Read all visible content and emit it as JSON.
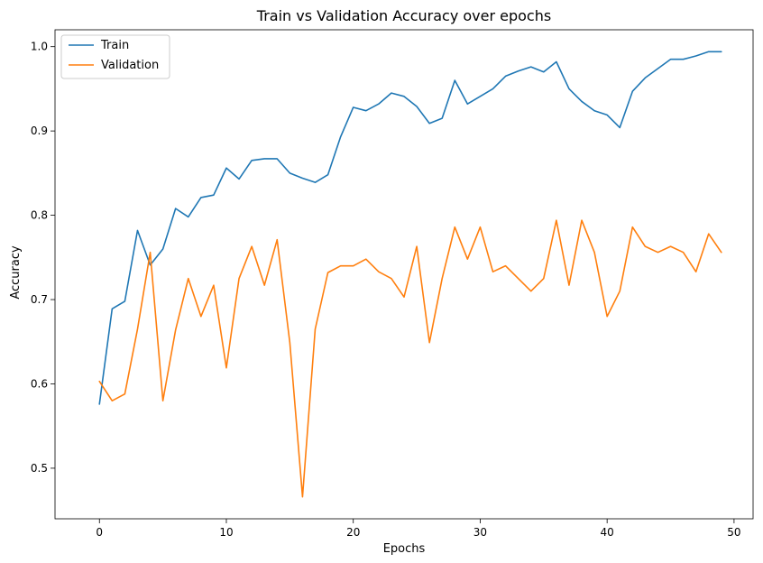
{
  "chart_data": {
    "type": "line",
    "title": "Train vs Validation Accuracy over epochs",
    "xlabel": "Epochs",
    "ylabel": "Accuracy",
    "xlim": [
      -3.5,
      51.5
    ],
    "ylim": [
      0.44,
      1.02
    ],
    "xticks": [
      0,
      10,
      20,
      30,
      40,
      50
    ],
    "yticks": [
      0.5,
      0.6,
      0.7,
      0.8,
      0.9,
      1.0
    ],
    "xtick_labels": [
      "0",
      "10",
      "20",
      "30",
      "40",
      "50"
    ],
    "ytick_labels": [
      "0.5",
      "0.6",
      "0.7",
      "0.8",
      "0.9",
      "1.0"
    ],
    "grid": false,
    "legend_position": "top-left",
    "series": [
      {
        "name": "Train",
        "color": "#1f77b4",
        "x": [
          0,
          1,
          2,
          3,
          4,
          5,
          6,
          7,
          8,
          9,
          10,
          11,
          12,
          13,
          14,
          15,
          16,
          17,
          18,
          19,
          20,
          21,
          22,
          23,
          24,
          25,
          26,
          27,
          28,
          29,
          30,
          31,
          32,
          33,
          34,
          35,
          36,
          37,
          38,
          39,
          40,
          41,
          42,
          43,
          44,
          45,
          46,
          47,
          48,
          49
        ],
        "values": [
          0.576,
          0.689,
          0.698,
          0.782,
          0.741,
          0.76,
          0.808,
          0.798,
          0.821,
          0.824,
          0.856,
          0.843,
          0.865,
          0.867,
          0.867,
          0.85,
          0.844,
          0.839,
          0.848,
          0.893,
          0.928,
          0.924,
          0.932,
          0.945,
          0.941,
          0.929,
          0.909,
          0.915,
          0.96,
          0.932,
          0.941,
          0.95,
          0.965,
          0.971,
          0.976,
          0.97,
          0.982,
          0.95,
          0.935,
          0.924,
          0.919,
          0.904,
          0.947,
          0.963,
          0.974,
          0.985,
          0.985,
          0.989,
          0.994,
          0.994
        ]
      },
      {
        "name": "Validation",
        "color": "#ff7f0e",
        "x": [
          0,
          1,
          2,
          3,
          4,
          5,
          6,
          7,
          8,
          9,
          10,
          11,
          12,
          13,
          14,
          15,
          16,
          17,
          18,
          19,
          20,
          21,
          22,
          23,
          24,
          25,
          26,
          27,
          28,
          29,
          30,
          31,
          32,
          33,
          34,
          35,
          36,
          37,
          38,
          39,
          40,
          41,
          42,
          43,
          44,
          45,
          46,
          47,
          48,
          49
        ],
        "values": [
          0.603,
          0.58,
          0.588,
          0.665,
          0.756,
          0.58,
          0.664,
          0.725,
          0.68,
          0.717,
          0.619,
          0.725,
          0.763,
          0.717,
          0.771,
          0.649,
          0.466,
          0.665,
          0.732,
          0.74,
          0.74,
          0.748,
          0.733,
          0.725,
          0.703,
          0.763,
          0.649,
          0.725,
          0.786,
          0.748,
          0.786,
          0.733,
          0.74,
          0.725,
          0.71,
          0.725,
          0.794,
          0.717,
          0.794,
          0.756,
          0.68,
          0.71,
          0.786,
          0.763,
          0.756,
          0.763,
          0.756,
          0.733,
          0.778,
          0.756
        ]
      }
    ]
  }
}
